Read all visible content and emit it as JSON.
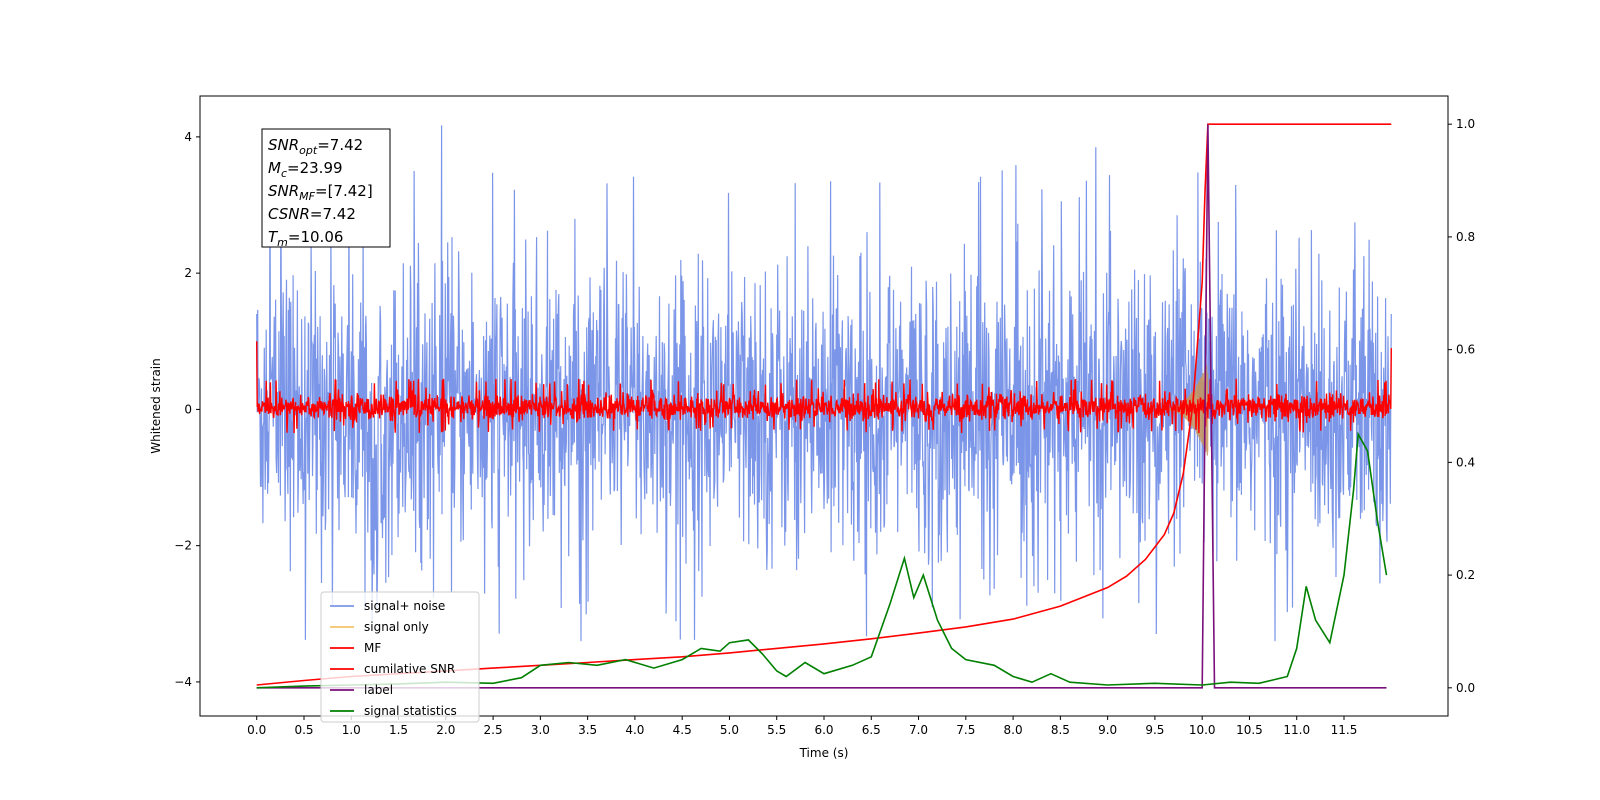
{
  "chart_data": {
    "type": "line",
    "title": "",
    "xlabel": "Time (s)",
    "ylabel_left": "Whitened strain",
    "ylabel_right": "",
    "xlim": [
      -0.6,
      12.6
    ],
    "ylim_left": [
      -4.5,
      4.6
    ],
    "ylim_right": [
      -0.05,
      1.05
    ],
    "x_ticks": [
      "0.0",
      "0.5",
      "1.0",
      "1.5",
      "2.0",
      "2.5",
      "3.0",
      "3.5",
      "4.0",
      "4.5",
      "5.0",
      "5.5",
      "6.0",
      "6.5",
      "7.0",
      "7.5",
      "8.0",
      "8.5",
      "9.0",
      "9.5",
      "10.0",
      "10.5",
      "11.0",
      "11.5"
    ],
    "y_ticks_left": [
      -4,
      -2,
      0,
      2,
      4
    ],
    "y_ticks_left_labels": [
      "−4",
      "−2",
      "0",
      "2",
      "4"
    ],
    "y_ticks_right": [
      "0.0",
      "0.2",
      "0.4",
      "0.6",
      "0.8",
      "1.0"
    ],
    "grid": false,
    "legend_placement": "lower-left",
    "annotation_box": {
      "lines": [
        {
          "sym": "SNR",
          "sub": "opt",
          "value": "=7.42"
        },
        {
          "sym": "M",
          "sub": "c",
          "value": "=23.99"
        },
        {
          "sym": "SNR",
          "sub": "MF",
          "value": "=[7.42]"
        },
        {
          "sym": "CSNR",
          "sub": "",
          "value": "=7.42"
        },
        {
          "sym": "T",
          "sub": "m",
          "value": "=10.06"
        }
      ]
    },
    "series": [
      {
        "name": "signal+ noise",
        "axis": "left",
        "color": "#7b96e8",
        "kind": "noise",
        "x_range": [
          0,
          12
        ],
        "amplitude_range": [
          -3.4,
          4.2
        ]
      },
      {
        "name": "signal only",
        "axis": "left",
        "color": "#f2c46a",
        "kind": "chirp",
        "x_range": [
          9.6,
          10.06
        ],
        "peak_amplitude": 0.7
      },
      {
        "name": "MF",
        "axis": "left",
        "color": "#ff0000",
        "kind": "noise",
        "x_range": [
          0,
          12
        ],
        "amplitude_range": [
          -0.35,
          0.45
        ]
      },
      {
        "name": "cumilative SNR",
        "axis": "right",
        "color": "#ff0000",
        "x": [
          0.0,
          0.5,
          1.0,
          1.5,
          2.0,
          2.5,
          3.0,
          3.5,
          4.0,
          4.5,
          5.0,
          5.5,
          6.0,
          6.5,
          7.0,
          7.5,
          8.0,
          8.5,
          9.0,
          9.2,
          9.4,
          9.6,
          9.7,
          9.8,
          9.9,
          10.0,
          10.03,
          10.06,
          12.0
        ],
        "y": [
          0.005,
          0.013,
          0.02,
          0.025,
          0.03,
          0.035,
          0.04,
          0.045,
          0.05,
          0.055,
          0.062,
          0.07,
          0.078,
          0.087,
          0.097,
          0.108,
          0.122,
          0.145,
          0.178,
          0.198,
          0.228,
          0.272,
          0.31,
          0.38,
          0.5,
          0.72,
          0.88,
          1.0,
          1.0
        ]
      },
      {
        "name": "label",
        "axis": "right",
        "color": "#7b0f7b",
        "x": [
          0.0,
          10.0,
          10.06,
          10.13,
          11.95
        ],
        "y": [
          0.0,
          0.0,
          1.0,
          0.0,
          0.0
        ]
      },
      {
        "name": "signal statistics",
        "axis": "right",
        "color": "#008000",
        "x": [
          0.0,
          0.5,
          1.0,
          1.5,
          2.0,
          2.5,
          2.8,
          3.0,
          3.3,
          3.6,
          3.9,
          4.2,
          4.5,
          4.7,
          4.9,
          5.0,
          5.2,
          5.35,
          5.5,
          5.6,
          5.8,
          6.0,
          6.3,
          6.5,
          6.7,
          6.85,
          6.95,
          7.05,
          7.2,
          7.35,
          7.5,
          7.8,
          8.0,
          8.2,
          8.4,
          8.6,
          9.0,
          9.5,
          10.0,
          10.3,
          10.6,
          10.9,
          11.0,
          11.1,
          11.2,
          11.35,
          11.5,
          11.6,
          11.65,
          11.75,
          11.85,
          11.95
        ],
        "y": [
          0.0,
          0.003,
          0.005,
          0.007,
          0.01,
          0.008,
          0.018,
          0.04,
          0.045,
          0.04,
          0.05,
          0.035,
          0.05,
          0.07,
          0.065,
          0.08,
          0.085,
          0.06,
          0.03,
          0.02,
          0.045,
          0.025,
          0.04,
          0.055,
          0.15,
          0.23,
          0.16,
          0.2,
          0.12,
          0.07,
          0.05,
          0.04,
          0.02,
          0.01,
          0.025,
          0.01,
          0.005,
          0.008,
          0.005,
          0.01,
          0.008,
          0.02,
          0.07,
          0.18,
          0.12,
          0.08,
          0.2,
          0.35,
          0.45,
          0.42,
          0.3,
          0.2
        ]
      }
    ]
  }
}
